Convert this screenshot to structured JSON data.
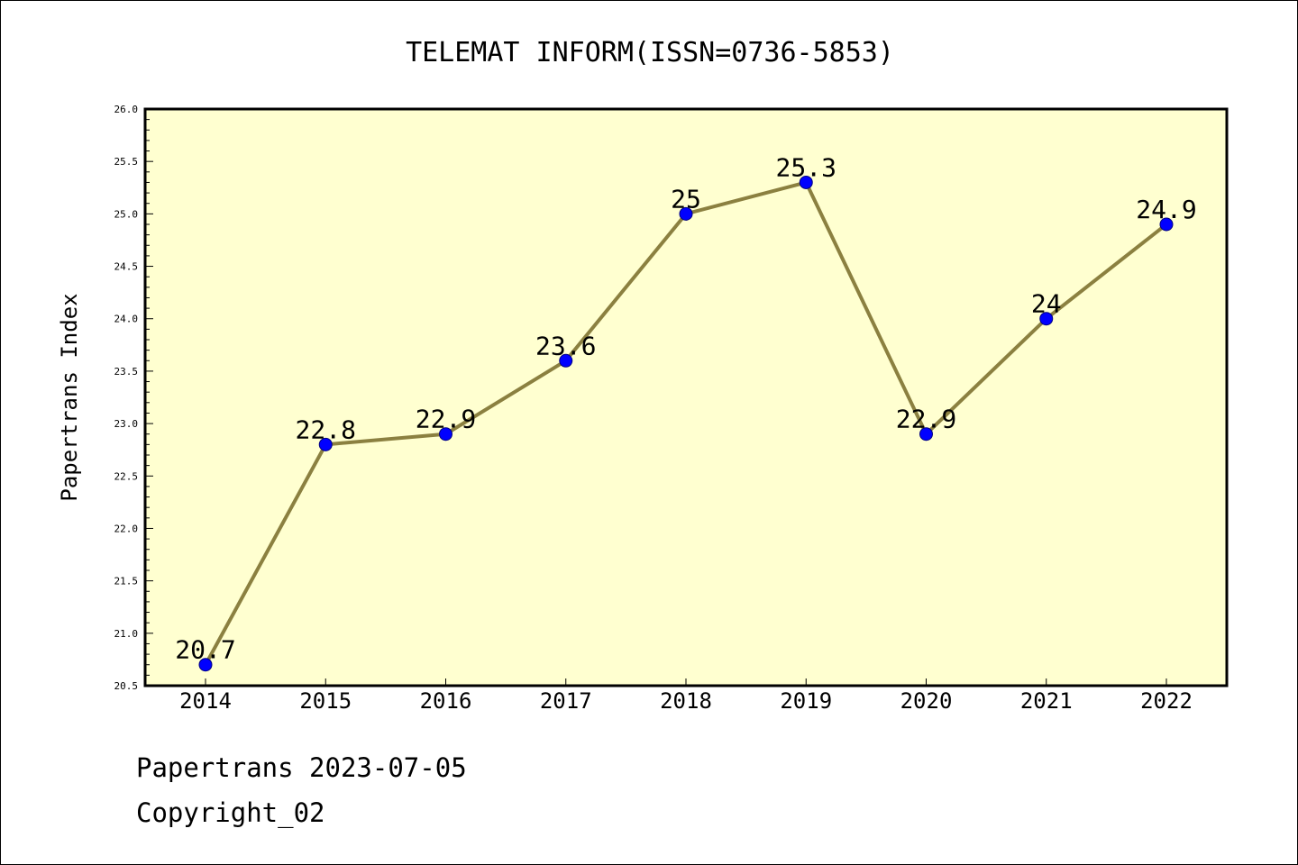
{
  "chart_data": {
    "type": "line",
    "title": "TELEMAT INFORM(ISSN=0736-5853)",
    "xlabel": "",
    "ylabel": "Papertrans Index",
    "categories": [
      "2014",
      "2015",
      "2016",
      "2017",
      "2018",
      "2019",
      "2020",
      "2021",
      "2022"
    ],
    "series": [
      {
        "values": [
          20.7,
          22.8,
          22.9,
          23.6,
          25,
          25.3,
          22.9,
          24,
          24.9
        ],
        "labels": [
          "20.7",
          "22.8",
          "22.9",
          "23.6",
          "25",
          "25.3",
          "22.9",
          "24",
          "24.9"
        ]
      }
    ],
    "ylim": [
      20.5,
      26.0
    ],
    "y_ticks": [
      "20.5",
      "21.0",
      "21.5",
      "22.0",
      "22.5",
      "23.0",
      "23.5",
      "24.0",
      "24.5",
      "25.0",
      "25.5",
      "26.0"
    ],
    "grid": false,
    "legend": "none",
    "colors": {
      "plot_background": "#ffffd0",
      "line": "#8b8040",
      "marker": "#0000ff",
      "marker_edge": "#000080",
      "axes": "#000000"
    }
  },
  "footer": {
    "date_line": "Papertrans 2023-07-05",
    "copyright_line": "Copyright_02"
  }
}
